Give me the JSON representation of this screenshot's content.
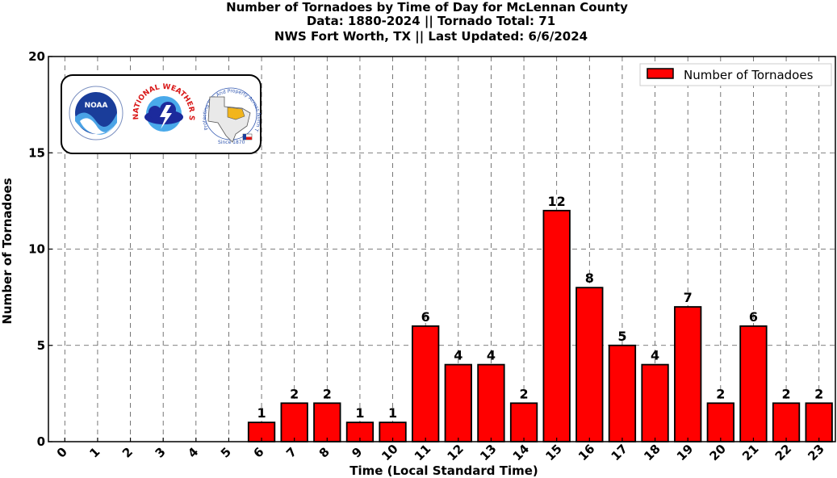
{
  "chart_data": {
    "type": "bar",
    "title_lines": [
      "Number of Tornadoes by Time of Day for McLennan County",
      "Data: 1880-2024 || Tornado Total: 71",
      "NWS Fort Worth, TX || Last Updated: 6/6/2024"
    ],
    "xlabel": "Time (Local Standard Time)",
    "ylabel": "Number of Tornadoes",
    "categories": [
      "0",
      "1",
      "2",
      "3",
      "4",
      "5",
      "6",
      "7",
      "8",
      "9",
      "10",
      "11",
      "12",
      "13",
      "14",
      "15",
      "16",
      "17",
      "18",
      "19",
      "20",
      "21",
      "22",
      "23"
    ],
    "series": [
      {
        "name": "Number of Tornadoes",
        "color": "#ff0000",
        "values": [
          0,
          0,
          0,
          0,
          0,
          0,
          1,
          2,
          2,
          1,
          1,
          6,
          4,
          4,
          2,
          12,
          8,
          5,
          4,
          7,
          2,
          6,
          2,
          2
        ]
      }
    ],
    "ylim": [
      0,
      20
    ],
    "yticks": [
      0,
      5,
      10,
      15,
      20
    ],
    "grid": true,
    "legend_position": "top-right",
    "logos": {
      "noaa": "NOAA",
      "nws_ring": "NATIONAL WEATHER SERVICE",
      "fort_worth_ring": "Protecting Life And Property Across North Texas",
      "since": "Since 1870"
    }
  }
}
